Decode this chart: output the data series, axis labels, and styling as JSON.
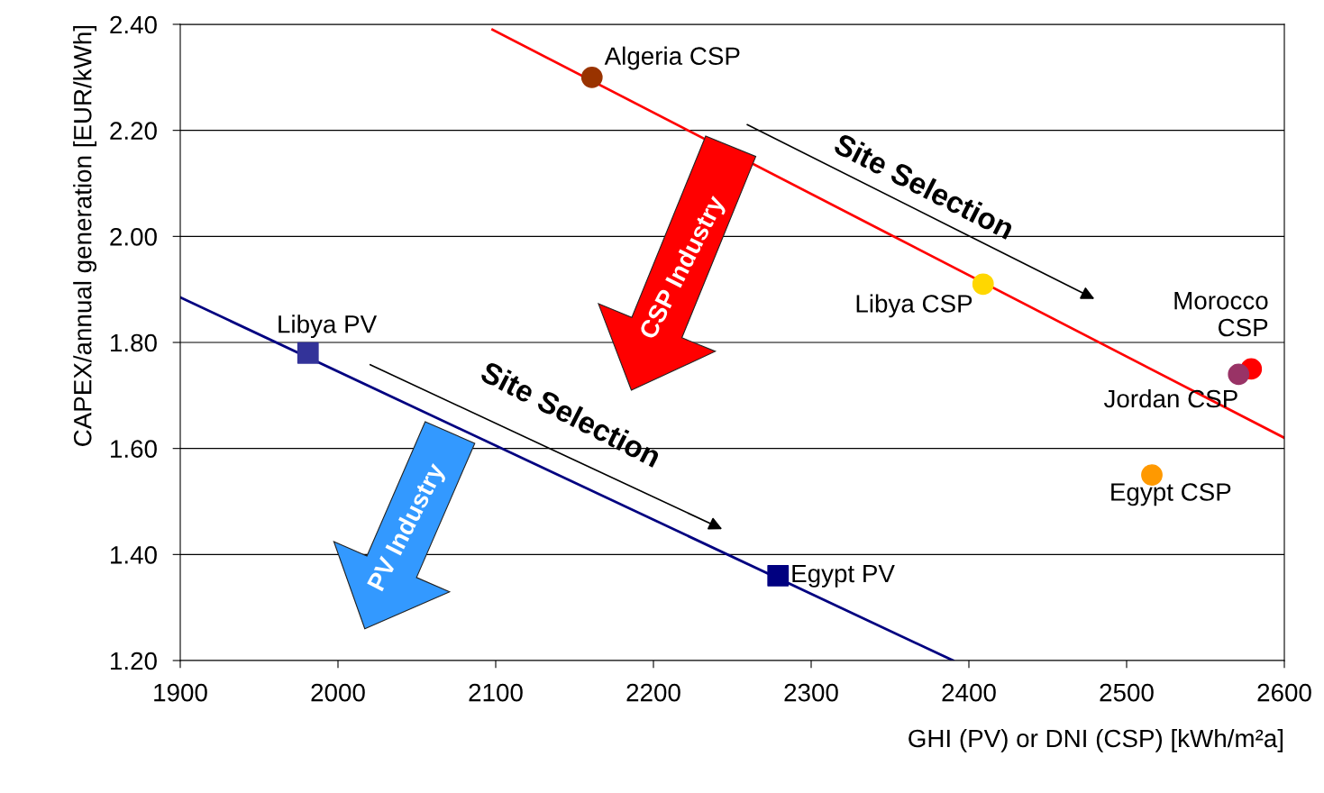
{
  "chart_data": {
    "type": "scatter",
    "xlabel": "GHI (PV) or DNI (CSP) [kWh/m²a]",
    "ylabel": "CAPEX/annual generation [EUR/kWh]",
    "xlim": [
      1900,
      2600
    ],
    "xticks": [
      1900,
      2000,
      2100,
      2200,
      2300,
      2400,
      2500,
      2600
    ],
    "ylim": [
      1.2,
      2.4
    ],
    "yticks": [
      {
        "value": 1.2,
        "label": "1.20"
      },
      {
        "value": 1.4,
        "label": "1.40"
      },
      {
        "value": 1.6,
        "label": "1.60"
      },
      {
        "value": 1.8,
        "label": "1.80"
      },
      {
        "value": 2.0,
        "label": "2.00"
      },
      {
        "value": 2.2,
        "label": "2.20"
      },
      {
        "value": 2.4,
        "label": "2.40"
      }
    ],
    "grid": "y",
    "legend": false,
    "series": [
      {
        "type": "line",
        "color": "#ff0000",
        "x": [
          2098,
          2600
        ],
        "values": [
          2.39,
          1.62
        ]
      },
      {
        "type": "line",
        "color": "#000080",
        "x": [
          1900,
          2390
        ],
        "values": [
          1.885,
          1.2
        ]
      },
      {
        "name": "Algeria CSP",
        "color": "#993300",
        "marker": "circle",
        "x": [
          2161
        ],
        "values": [
          2.3
        ]
      },
      {
        "name": "Libya CSP",
        "color": "#ffd700",
        "marker": "circle",
        "x": [
          2409
        ],
        "values": [
          1.91
        ]
      },
      {
        "name": "Morocco CSP",
        "color": "#ff0000",
        "marker": "circle",
        "x": [
          2579
        ],
        "values": [
          1.75
        ]
      },
      {
        "name": "Jordan CSP",
        "color": "#993366",
        "marker": "circle",
        "x": [
          2571
        ],
        "values": [
          1.74
        ]
      },
      {
        "name": "Egypt CSP",
        "color": "#ff9900",
        "marker": "circle",
        "x": [
          2516
        ],
        "values": [
          1.55
        ]
      },
      {
        "name": "Libya PV",
        "color": "#333399",
        "marker": "square",
        "x": [
          1981
        ],
        "values": [
          1.78
        ]
      },
      {
        "name": "Egypt PV",
        "color": "#000080",
        "marker": "square",
        "x": [
          2279
        ],
        "values": [
          1.36
        ]
      }
    ],
    "annotations": [
      "Site Selection",
      "Site Selection",
      "CSP Industry",
      "PV Industry"
    ]
  }
}
